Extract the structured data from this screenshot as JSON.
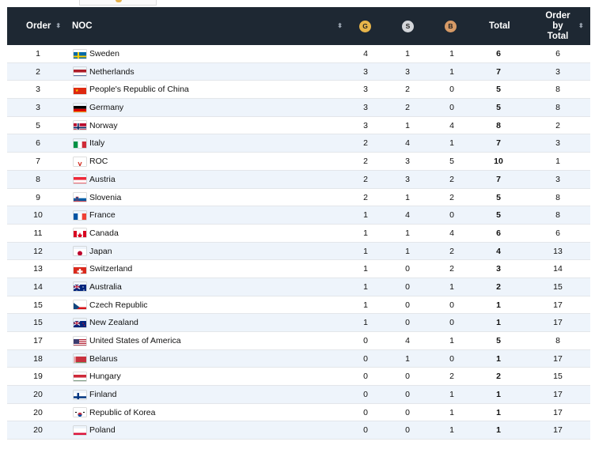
{
  "header": {
    "order": "Order",
    "noc": "NOC",
    "gold": "G",
    "silver": "S",
    "bronze": "B",
    "total": "Total",
    "order_by_total_1": "Order",
    "order_by_total_2": "by",
    "order_by_total_3": "Total"
  },
  "colors": {
    "header_bg": "#1e2833",
    "gold": "#e8b54a",
    "silver": "#d3d6da",
    "bronze": "#d69a66",
    "alt_row": "#eef4fb"
  },
  "rows": [
    {
      "order": "1",
      "noc": "Sweden",
      "flag": "sweden-flag-icon",
      "g": "4",
      "s": "1",
      "b": "1",
      "total": "6",
      "obt": "6"
    },
    {
      "order": "2",
      "noc": "Netherlands",
      "flag": "netherlands-flag-icon",
      "g": "3",
      "s": "3",
      "b": "1",
      "total": "7",
      "obt": "3"
    },
    {
      "order": "3",
      "noc": "People's Republic of China",
      "flag": "china-flag-icon",
      "g": "3",
      "s": "2",
      "b": "0",
      "total": "5",
      "obt": "8"
    },
    {
      "order": "3",
      "noc": "Germany",
      "flag": "germany-flag-icon",
      "g": "3",
      "s": "2",
      "b": "0",
      "total": "5",
      "obt": "8"
    },
    {
      "order": "5",
      "noc": "Norway",
      "flag": "norway-flag-icon",
      "g": "3",
      "s": "1",
      "b": "4",
      "total": "8",
      "obt": "2"
    },
    {
      "order": "6",
      "noc": "Italy",
      "flag": "italy-flag-icon",
      "g": "2",
      "s": "4",
      "b": "1",
      "total": "7",
      "obt": "3"
    },
    {
      "order": "7",
      "noc": "ROC",
      "flag": "roc-flag-icon",
      "g": "2",
      "s": "3",
      "b": "5",
      "total": "10",
      "obt": "1"
    },
    {
      "order": "8",
      "noc": "Austria",
      "flag": "austria-flag-icon",
      "g": "2",
      "s": "3",
      "b": "2",
      "total": "7",
      "obt": "3"
    },
    {
      "order": "9",
      "noc": "Slovenia",
      "flag": "slovenia-flag-icon",
      "g": "2",
      "s": "1",
      "b": "2",
      "total": "5",
      "obt": "8"
    },
    {
      "order": "10",
      "noc": "France",
      "flag": "france-flag-icon",
      "g": "1",
      "s": "4",
      "b": "0",
      "total": "5",
      "obt": "8"
    },
    {
      "order": "11",
      "noc": "Canada",
      "flag": "canada-flag-icon",
      "g": "1",
      "s": "1",
      "b": "4",
      "total": "6",
      "obt": "6"
    },
    {
      "order": "12",
      "noc": "Japan",
      "flag": "japan-flag-icon",
      "g": "1",
      "s": "1",
      "b": "2",
      "total": "4",
      "obt": "13"
    },
    {
      "order": "13",
      "noc": "Switzerland",
      "flag": "switzerland-flag-icon",
      "g": "1",
      "s": "0",
      "b": "2",
      "total": "3",
      "obt": "14"
    },
    {
      "order": "14",
      "noc": "Australia",
      "flag": "australia-flag-icon",
      "g": "1",
      "s": "0",
      "b": "1",
      "total": "2",
      "obt": "15"
    },
    {
      "order": "15",
      "noc": "Czech Republic",
      "flag": "czech-republic-flag-icon",
      "g": "1",
      "s": "0",
      "b": "0",
      "total": "1",
      "obt": "17"
    },
    {
      "order": "15",
      "noc": "New Zealand",
      "flag": "new-zealand-flag-icon",
      "g": "1",
      "s": "0",
      "b": "0",
      "total": "1",
      "obt": "17"
    },
    {
      "order": "17",
      "noc": "United States of America",
      "flag": "usa-flag-icon",
      "g": "0",
      "s": "4",
      "b": "1",
      "total": "5",
      "obt": "8"
    },
    {
      "order": "18",
      "noc": "Belarus",
      "flag": "belarus-flag-icon",
      "g": "0",
      "s": "1",
      "b": "0",
      "total": "1",
      "obt": "17"
    },
    {
      "order": "19",
      "noc": "Hungary",
      "flag": "hungary-flag-icon",
      "g": "0",
      "s": "0",
      "b": "2",
      "total": "2",
      "obt": "15"
    },
    {
      "order": "20",
      "noc": "Finland",
      "flag": "finland-flag-icon",
      "g": "0",
      "s": "0",
      "b": "1",
      "total": "1",
      "obt": "17"
    },
    {
      "order": "20",
      "noc": "Republic of Korea",
      "flag": "korea-flag-icon",
      "g": "0",
      "s": "0",
      "b": "1",
      "total": "1",
      "obt": "17"
    },
    {
      "order": "20",
      "noc": "Poland",
      "flag": "poland-flag-icon",
      "g": "0",
      "s": "0",
      "b": "1",
      "total": "1",
      "obt": "17"
    }
  ]
}
